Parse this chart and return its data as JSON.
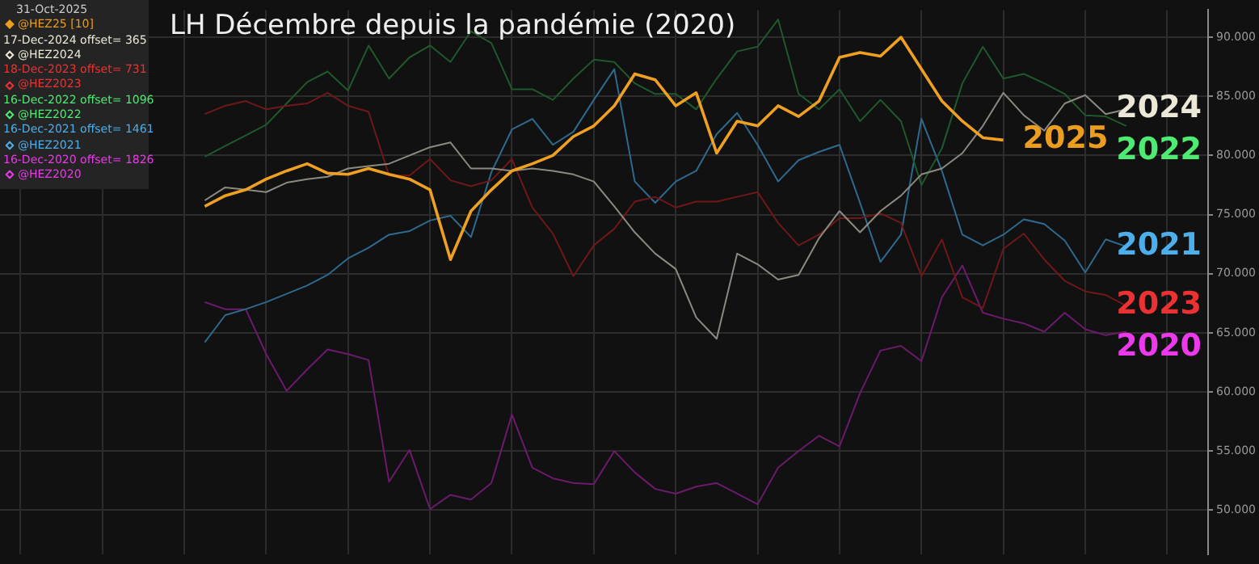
{
  "chart_data": {
    "type": "line",
    "title": "LH Décembre depuis la pandémie (2020)",
    "categories": [
      null,
      null,
      null,
      null,
      null,
      null,
      null,
      null,
      null,
      null,
      null,
      null,
      null,
      null,
      null,
      null,
      null,
      null,
      null,
      null,
      null,
      null,
      null,
      null,
      null,
      null,
      null,
      null,
      null,
      null,
      null,
      null,
      null,
      null,
      null,
      null,
      null,
      null,
      null,
      null,
      null,
      null,
      null,
      null,
      null,
      null,
      null,
      null,
      null,
      null,
      null,
      null,
      null,
      null,
      null,
      null,
      null,
      null,
      null,
      null
    ],
    "series": [
      {
        "name": "2025",
        "color": "#f0a020",
        "values": [
          null,
          null,
          null,
          null,
          null,
          null,
          null,
          null,
          null,
          null,
          75.7,
          76.6,
          77.1,
          78,
          78.7,
          79.3,
          78.5,
          78.4,
          78.9,
          78.4,
          78,
          77.1,
          71.2,
          75.3,
          77.1,
          78.7,
          79.3,
          80,
          81.6,
          82.5,
          84.2,
          86.9,
          86.4,
          84.2,
          85.3,
          80.2,
          82.9,
          82.5,
          84.2,
          83.3,
          84.6,
          88.3,
          88.7,
          88.4,
          90,
          87.3,
          84.6,
          82.9,
          81.5,
          81.3,
          null,
          null,
          null,
          null,
          null,
          null,
          null,
          null,
          null,
          null
        ]
      },
      {
        "name": "2024",
        "color": "#8c8a80",
        "values": [
          null,
          null,
          null,
          null,
          null,
          null,
          null,
          null,
          null,
          null,
          76.2,
          77.3,
          77.1,
          76.9,
          77.7,
          78,
          78.2,
          78.9,
          79.1,
          79.3,
          80,
          80.7,
          81.1,
          78.9,
          78.9,
          78.7,
          78.9,
          78.7,
          78.4,
          77.8,
          75.7,
          73.5,
          71.7,
          70.4,
          66.3,
          64.5,
          71.7,
          70.8,
          69.5,
          69.9,
          73,
          75.3,
          73.5,
          75.3,
          76.6,
          78.4,
          78.9,
          80.2,
          82.5,
          85.3,
          83.4,
          82.1,
          84.4,
          85.1,
          83.5,
          83.9,
          null,
          null,
          null,
          null
        ]
      },
      {
        "name": "2023",
        "color": "#701818",
        "values": [
          null,
          null,
          null,
          null,
          null,
          null,
          null,
          null,
          null,
          null,
          83.5,
          84.2,
          84.6,
          83.9,
          84.2,
          84.4,
          85.3,
          84.2,
          83.7,
          78.3,
          78.3,
          79.7,
          77.9,
          77.4,
          77.9,
          79.7,
          75.6,
          73.4,
          69.8,
          72.4,
          73.8,
          76.1,
          76.5,
          75.6,
          76.1,
          76.1,
          76.5,
          76.9,
          74.3,
          72.4,
          73.3,
          74.7,
          74.7,
          75.1,
          74.3,
          69.8,
          72.9,
          68,
          67.1,
          72.1,
          73.4,
          71.2,
          69.4,
          68.5,
          68.2,
          67.3,
          null,
          null,
          null,
          null
        ]
      },
      {
        "name": "2022",
        "color": "#1e5a2c",
        "values": [
          null,
          null,
          null,
          null,
          null,
          null,
          null,
          null,
          null,
          null,
          79.9,
          80.8,
          81.7,
          82.6,
          84.4,
          86.2,
          87.1,
          85.5,
          89.3,
          86.5,
          88.3,
          89.3,
          87.9,
          90.5,
          89.5,
          85.6,
          85.6,
          84.7,
          86.5,
          88.1,
          87.9,
          86.1,
          85.2,
          85.2,
          83.9,
          86.5,
          88.8,
          89.2,
          91.5,
          85.2,
          83.9,
          85.6,
          82.9,
          84.7,
          82.9,
          77.5,
          80.6,
          86.1,
          89.2,
          86.5,
          86.9,
          86.1,
          85.2,
          83.4,
          83.3,
          82.5,
          null,
          null,
          null,
          null
        ]
      },
      {
        "name": "2021",
        "color": "#2e6a8e",
        "values": [
          null,
          null,
          null,
          null,
          null,
          null,
          null,
          null,
          null,
          null,
          64.2,
          66.5,
          67,
          67.6,
          68.3,
          69,
          69.9,
          71.3,
          72.2,
          73.3,
          73.6,
          74.5,
          74.9,
          73.1,
          78.6,
          82.2,
          83.1,
          80.9,
          82,
          84.7,
          87.3,
          77.8,
          76,
          77.8,
          78.7,
          81.8,
          83.6,
          80.9,
          77.8,
          79.6,
          80.3,
          80.9,
          76,
          71,
          73.3,
          83.1,
          78.7,
          73.3,
          72.4,
          73.3,
          74.6,
          74.2,
          72.8,
          70.1,
          72.9,
          72.3,
          null,
          null,
          null,
          null
        ]
      },
      {
        "name": "2020",
        "color": "#6c1a6c",
        "values": [
          null,
          null,
          null,
          null,
          null,
          null,
          null,
          null,
          null,
          null,
          67.6,
          67,
          67,
          63.2,
          60.1,
          61.9,
          63.6,
          63.2,
          62.7,
          52.4,
          55.1,
          50.1,
          51.3,
          50.9,
          52.3,
          58.1,
          53.6,
          52.7,
          52.3,
          52.2,
          55,
          53.2,
          51.8,
          51.4,
          52,
          52.3,
          51.4,
          50.5,
          53.6,
          55,
          56.3,
          55.4,
          59.9,
          63.5,
          63.9,
          62.6,
          68,
          70.7,
          66.7,
          66.2,
          65.8,
          65.1,
          66.7,
          65.3,
          64.8,
          65.1,
          null,
          null,
          null,
          null
        ]
      }
    ],
    "ylim": [
      46.3,
      92.3
    ],
    "yticks": [
      {
        "value": 50,
        "label": "50.000"
      },
      {
        "value": 55,
        "label": "55.000"
      },
      {
        "value": 60,
        "label": "60.000"
      },
      {
        "value": 65,
        "label": "65.000"
      },
      {
        "value": 70,
        "label": "70.000"
      },
      {
        "value": 75,
        "label": "75.000"
      },
      {
        "value": 80,
        "label": "80.000"
      },
      {
        "value": 85,
        "label": "85.000"
      },
      {
        "value": 90,
        "label": "90.000"
      }
    ],
    "tick_labels": "y",
    "grid": true,
    "marker": "none",
    "line_style": "solid",
    "annotations": [
      "31-Oct-2025",
      "@HEZ25 [10]",
      "17-Dec-2024 offset= 365",
      "@HEZ2024",
      "18-Dec-2023 offset= 731",
      "@HEZ2023",
      "16-Dec-2022 offset= 1096",
      "@HEZ2022",
      "16-Dec-2021 offset= 1461",
      "@HEZ2021",
      "16-Dec-2020 offset= 1826",
      "@HEZ2020"
    ]
  }
}
